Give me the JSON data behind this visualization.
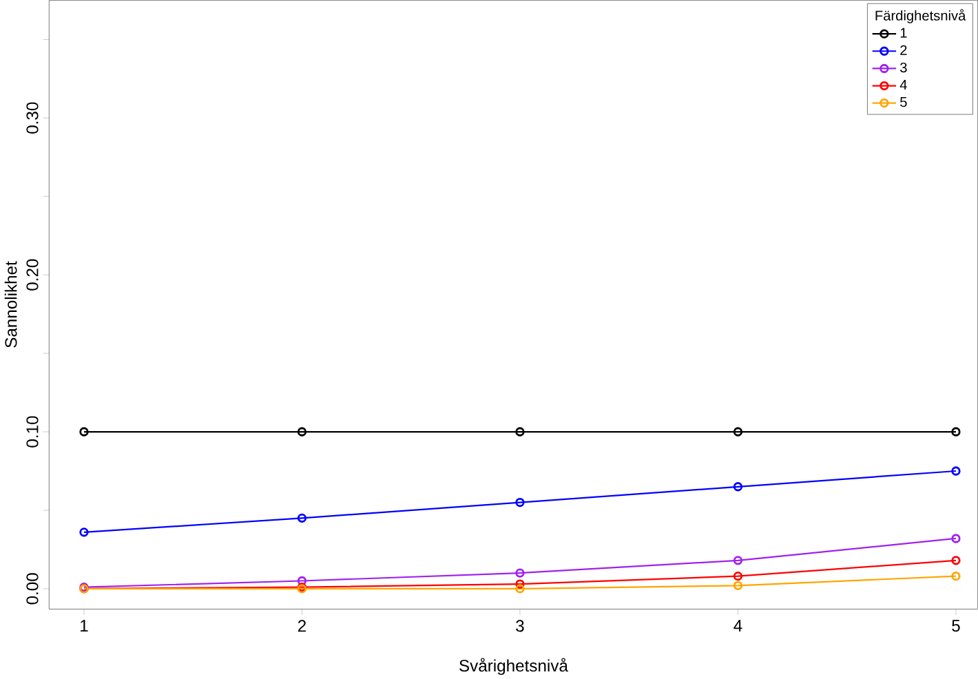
{
  "chart_data": {
    "type": "line",
    "xlabel": "Svårighetsnivå",
    "ylabel": "Sannolikhet",
    "legend_title": "Färdighetsnivå",
    "x": [
      1,
      2,
      3,
      4,
      5
    ],
    "series": [
      {
        "name": "1",
        "color": "#000000",
        "values": [
          0.1,
          0.1,
          0.1,
          0.1,
          0.1
        ]
      },
      {
        "name": "2",
        "color": "#0000ff",
        "values": [
          0.036,
          0.045,
          0.055,
          0.065,
          0.075
        ]
      },
      {
        "name": "3",
        "color": "#a020f0",
        "values": [
          0.001,
          0.005,
          0.01,
          0.018,
          0.032
        ]
      },
      {
        "name": "4",
        "color": "#ff0000",
        "values": [
          0.0,
          0.001,
          0.003,
          0.008,
          0.018
        ]
      },
      {
        "name": "5",
        "color": "#ffa500",
        "values": [
          0.0,
          0.0,
          0.0,
          0.002,
          0.008
        ]
      }
    ],
    "xlim": [
      0.84,
      5.1
    ],
    "ylim": [
      -0.013,
      0.375
    ],
    "xticks": [
      1,
      2,
      3,
      4,
      5
    ],
    "yticks": [
      {
        "value": 0,
        "label": "0.00"
      },
      {
        "value": 0.05,
        "label": null
      },
      {
        "value": 0.1,
        "label": "0.10"
      },
      {
        "value": 0.15,
        "label": null
      },
      {
        "value": 0.2,
        "label": "0.20"
      },
      {
        "value": 0.25,
        "label": null
      },
      {
        "value": 0.3,
        "label": "0.30"
      },
      {
        "value": 0.35,
        "label": null
      }
    ],
    "grid": false,
    "legend": "top right",
    "marker": "circle",
    "line_style": "solid"
  }
}
